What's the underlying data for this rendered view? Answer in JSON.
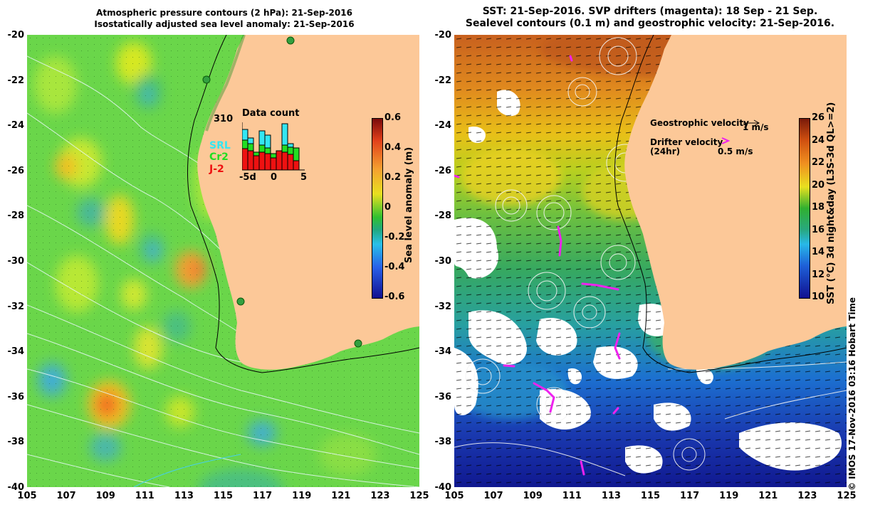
{
  "left_panel": {
    "title_line1": "Atmospheric pressure contours (2 hPa): 21-Sep-2016",
    "title_line2": "Isostatically adjusted sea level anomaly: 21-Sep-2016",
    "y_ticks": [
      "-20",
      "-22",
      "-24",
      "-26",
      "-28",
      "-30",
      "-32",
      "-34",
      "-36",
      "-38",
      "-40"
    ],
    "x_ticks": [
      "105",
      "107",
      "109",
      "111",
      "113",
      "115",
      "117",
      "119",
      "121",
      "123",
      "125"
    ],
    "colorbar": {
      "label": "Sea level anomaly (m)",
      "ticks": [
        "0.6",
        "0.4",
        "0.2",
        "0",
        "-0.2",
        "-0.4",
        "-0.6"
      ],
      "range": [
        -0.6,
        0.6
      ]
    },
    "inset": {
      "title": "Data count",
      "max_label": "310",
      "legend": [
        {
          "name": "SRL",
          "color": "#33e6f2"
        },
        {
          "name": "Cr2",
          "color": "#22dd22"
        },
        {
          "name": "J-2",
          "color": "#ee1111"
        }
      ],
      "x_labels": [
        "-5d",
        "0",
        "5"
      ]
    }
  },
  "right_panel": {
    "title_line1": "SST: 21-Sep-2016. SVP drifters (magenta): 18 Sep - 21 Sep.",
    "title_line2": "Sealevel contours (0.1 m) and geostrophic velocity: 21-Sep-2016.",
    "y_ticks": [
      "-20",
      "-22",
      "-24",
      "-26",
      "-28",
      "-30",
      "-32",
      "-34",
      "-36",
      "-38",
      "-40"
    ],
    "x_ticks": [
      "105",
      "107",
      "109",
      "111",
      "113",
      "115",
      "117",
      "119",
      "121",
      "123",
      "125"
    ],
    "colorbar": {
      "label": "SST (°C) 3d night&day (L3S-3d QL>=2)",
      "ticks": [
        "26",
        "24",
        "22",
        "20",
        "18",
        "16",
        "14",
        "12",
        "10"
      ],
      "range": [
        10,
        26
      ]
    },
    "annotations": {
      "geo_label": "Geostrophic velocity",
      "geo_scale": "1 m/s",
      "drifter_label": "Drifter velocity",
      "drifter_sub": "(24hr)",
      "drifter_scale": "0.5 m/s"
    }
  },
  "credit": "© IMOS 17-Nov-2016 03:16 Hobart Time",
  "colors": {
    "land": "#fcc898",
    "drifter": "#ee22ee"
  }
}
